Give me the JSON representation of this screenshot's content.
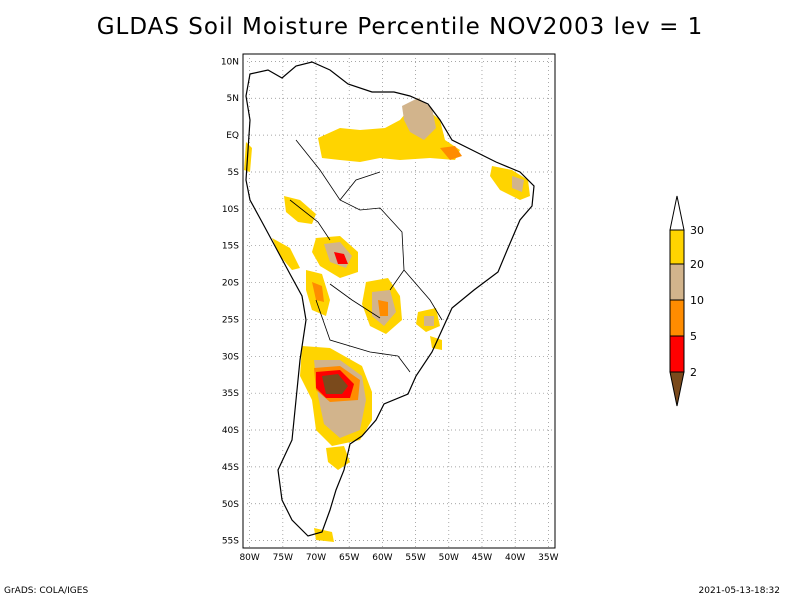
{
  "title": "GLDAS Soil Moisture Percentile NOV2003 lev = 1",
  "footer": {
    "left": "GrADS: COLA/IGES",
    "right": "2021-05-13-18:32"
  },
  "map": {
    "lat_labels": [
      "10N",
      "5N",
      "EQ",
      "5S",
      "10S",
      "15S",
      "20S",
      "25S",
      "30S",
      "35S",
      "40S",
      "45S",
      "50S",
      "55S"
    ],
    "lon_labels": [
      "80W",
      "75W",
      "70W",
      "65W",
      "60W",
      "55W",
      "50W",
      "45W",
      "40W",
      "35W"
    ],
    "lat_range": [
      -56,
      11
    ],
    "lon_range": [
      -81,
      -34
    ]
  },
  "legend": {
    "ticks": [
      "30",
      "20",
      "10",
      "5",
      "2"
    ],
    "colors": {
      "above_30": "#ffffff",
      "20_30": "#ffd400",
      "10_20": "#d2b48c",
      "5_10": "#ff8c00",
      "2_5": "#ff0000",
      "below_2": "#7a4a1c"
    }
  }
}
